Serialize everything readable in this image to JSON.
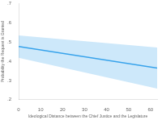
{
  "chart_data": {
    "type": "line",
    "xlabel": "Ideological Distance between the Chief Justice and the Legislature",
    "ylabel": "Probability the Request is Granted",
    "x": [
      0,
      63
    ],
    "series": [
      {
        "values": [
          0.477,
          0.365
        ],
        "lower": [
          0.418,
          0.258
        ],
        "upper": [
          0.535,
          0.472
        ]
      }
    ],
    "xlim": [
      0,
      63
    ],
    "ylim": [
      0.2,
      0.7
    ],
    "xticks": [
      0,
      10,
      20,
      30,
      40,
      50,
      60
    ],
    "yticks": [
      {
        "value": 0.2,
        "label": ".2"
      },
      {
        "value": 0.3,
        "label": ".3"
      },
      {
        "value": 0.4,
        "label": ".4"
      },
      {
        "value": 0.5,
        "label": ".5"
      },
      {
        "value": 0.6,
        "label": ".6"
      },
      {
        "value": 0.7,
        "label": ".7"
      }
    ],
    "grid": false
  }
}
